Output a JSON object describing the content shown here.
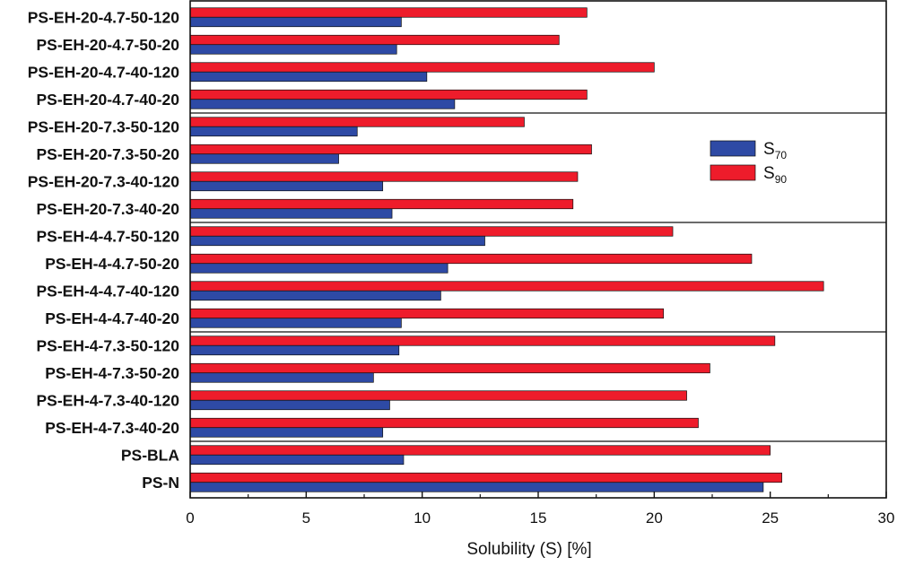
{
  "chart_data": {
    "type": "bar",
    "orientation": "horizontal",
    "xlabel": "Solubility (S) [%]",
    "xlim": [
      0,
      30
    ],
    "xticks": [
      "0",
      "5",
      "10",
      "15",
      "20",
      "25",
      "30"
    ],
    "categories": [
      "PS-EH-20-4.7-50-120",
      "PS-EH-20-4.7-50-20",
      "PS-EH-20-4.7-40-120",
      "PS-EH-20-4.7-40-20",
      "PS-EH-20-7.3-50-120",
      "PS-EH-20-7.3-50-20",
      "PS-EH-20-7.3-40-120",
      "PS-EH-20-7.3-40-20",
      "PS-EH-4-4.7-50-120",
      "PS-EH-4-4.7-50-20",
      "PS-EH-4-4.7-40-120",
      "PS-EH-4-4.7-40-20",
      "PS-EH-4-7.3-50-120",
      "PS-EH-4-7.3-50-20",
      "PS-EH-4-7.3-40-120",
      "PS-EH-4-7.3-40-20",
      "PS-BLA",
      "PS-N"
    ],
    "group_separators_after": [
      3,
      7,
      11,
      15
    ],
    "series": [
      {
        "name": "S90",
        "legend_main": "S",
        "legend_sub": "90",
        "color": "#ee1c2b",
        "values": [
          17.1,
          15.9,
          20.0,
          17.1,
          14.4,
          17.3,
          16.7,
          16.5,
          20.8,
          24.2,
          27.3,
          20.4,
          25.2,
          22.4,
          21.4,
          21.9,
          25.0,
          25.5
        ]
      },
      {
        "name": "S70",
        "legend_main": "S",
        "legend_sub": "70",
        "color": "#2e4aa5",
        "values": [
          9.1,
          8.9,
          10.2,
          11.4,
          7.2,
          6.4,
          8.3,
          8.7,
          12.7,
          11.1,
          10.8,
          9.1,
          9.0,
          7.9,
          8.6,
          8.3,
          9.2,
          24.7
        ]
      }
    ],
    "legend_order": [
      "S70",
      "S90"
    ],
    "legend_position": "center-right",
    "grid": false
  }
}
